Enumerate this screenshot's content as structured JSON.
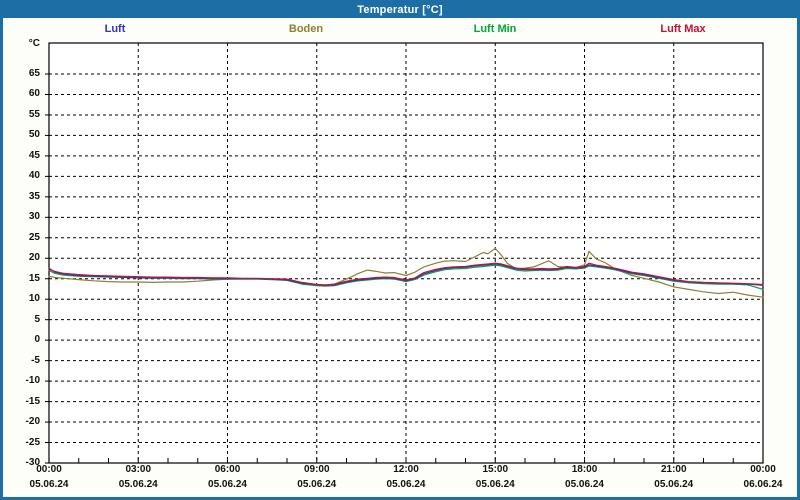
{
  "window": {
    "title": "Temperatur [°C]",
    "title_bg": "#1c6ea4",
    "title_color": "#ffffff",
    "border_color": "#1c6ea4"
  },
  "legend": [
    {
      "label": "Luft",
      "color": "#3232c8"
    },
    {
      "label": "Boden",
      "color": "#917e35"
    },
    {
      "label": "Luft Min",
      "color": "#00a834"
    },
    {
      "label": "Luft Max",
      "color": "#c81032"
    }
  ],
  "chart_data": {
    "type": "line",
    "title": "Temperatur [°C]",
    "xlabel": "",
    "ylabel": "°C",
    "ylim": [
      -30,
      72
    ],
    "grid": "dashed",
    "legend_position": "top",
    "y_ticks": [
      65,
      60,
      55,
      50,
      45,
      40,
      35,
      30,
      25,
      20,
      15,
      10,
      5,
      0,
      -5,
      -10,
      -15,
      -20,
      -25,
      -30
    ],
    "x_ticks": [
      {
        "time": "00:00",
        "date": "05.06.24"
      },
      {
        "time": "03:00",
        "date": "05.06.24"
      },
      {
        "time": "06:00",
        "date": "05.06.24"
      },
      {
        "time": "09:00",
        "date": "05.06.24"
      },
      {
        "time": "12:00",
        "date": "05.06.24"
      },
      {
        "time": "15:00",
        "date": "05.06.24"
      },
      {
        "time": "18:00",
        "date": "05.06.24"
      },
      {
        "time": "21:00",
        "date": "05.06.24"
      },
      {
        "time": "00:00",
        "date": "06.06.24"
      }
    ],
    "x_hours": [
      0,
      0.2,
      0.5,
      1,
      1.5,
      2,
      2.5,
      3,
      3.5,
      4,
      4.5,
      5,
      5.5,
      6,
      6.5,
      7,
      7.5,
      8,
      8.5,
      9,
      9.3,
      9.6,
      10,
      10.4,
      10.7,
      11,
      11.3,
      11.6,
      12,
      12.3,
      12.6,
      13,
      13.3,
      13.6,
      14,
      14.3,
      14.6,
      14.75,
      15,
      15.2,
      15.4,
      15.7,
      16,
      16.3,
      16.6,
      16.8,
      17.1,
      17.4,
      17.7,
      18,
      18.15,
      18.4,
      18.7,
      19,
      19.3,
      19.6,
      20,
      20.5,
      21,
      21.5,
      22,
      22.5,
      23,
      23.5,
      24
    ],
    "series": [
      {
        "name": "Boden",
        "color": "#917e35",
        "values": [
          15.6,
          15.3,
          15.1,
          14.8,
          14.5,
          14.3,
          14.2,
          14.2,
          14.1,
          14.2,
          14.2,
          14.4,
          14.7,
          14.9,
          15.0,
          15.0,
          14.9,
          14.7,
          13.9,
          13.5,
          13.4,
          13.7,
          14.9,
          16.3,
          17.1,
          16.8,
          16.4,
          16.5,
          15.8,
          16.6,
          17.9,
          18.8,
          19.3,
          19.4,
          19.2,
          20.3,
          21.4,
          21.1,
          22.4,
          20.8,
          18.8,
          17.4,
          17.6,
          17.9,
          18.8,
          19.4,
          18.0,
          17.8,
          17.7,
          18.4,
          21.7,
          19.8,
          18.9,
          17.5,
          16.6,
          15.8,
          15.1,
          14.2,
          13.0,
          12.4,
          11.8,
          11.4,
          11.7,
          11.0,
          10.5
        ]
      },
      {
        "name": "Luft Min",
        "color": "#00a834",
        "values": [
          17.0,
          16.3,
          15.9,
          15.6,
          15.5,
          15.4,
          15.3,
          15.2,
          15.1,
          15.1,
          15.0,
          15.0,
          14.9,
          14.9,
          14.9,
          14.9,
          14.8,
          14.6,
          13.7,
          13.3,
          13.2,
          13.3,
          14.0,
          14.5,
          14.7,
          14.9,
          15.0,
          14.9,
          14.3,
          14.8,
          15.9,
          16.7,
          17.2,
          17.4,
          17.5,
          17.8,
          18.0,
          18.1,
          18.3,
          18.1,
          17.7,
          17.1,
          16.9,
          17.0,
          17.1,
          17.0,
          17.1,
          17.5,
          17.4,
          17.6,
          18.1,
          17.9,
          17.6,
          17.2,
          16.7,
          16.2,
          15.8,
          15.1,
          14.4,
          14.0,
          13.8,
          13.7,
          13.7,
          13.5,
          12.4
        ]
      },
      {
        "name": "Luft",
        "color": "#3232c8",
        "values": [
          17.6,
          16.6,
          16.1,
          15.8,
          15.6,
          15.5,
          15.4,
          15.3,
          15.2,
          15.2,
          15.1,
          15.1,
          15.0,
          15.0,
          15.0,
          15.0,
          14.9,
          14.7,
          13.9,
          13.5,
          13.4,
          13.5,
          14.2,
          14.7,
          14.9,
          15.1,
          15.2,
          15.1,
          14.5,
          15.0,
          16.2,
          17.0,
          17.5,
          17.7,
          17.8,
          18.1,
          18.3,
          18.4,
          18.6,
          18.4,
          18.0,
          17.4,
          17.2,
          17.2,
          17.3,
          17.2,
          17.3,
          17.8,
          17.6,
          17.8,
          18.4,
          18.1,
          17.8,
          17.4,
          16.9,
          16.4,
          16.0,
          15.3,
          14.6,
          14.2,
          14.0,
          13.9,
          13.8,
          13.7,
          13.4
        ]
      },
      {
        "name": "Luft Max",
        "color": "#c81032",
        "values": [
          17.3,
          16.8,
          16.3,
          16.0,
          15.8,
          15.7,
          15.6,
          15.5,
          15.4,
          15.4,
          15.3,
          15.3,
          15.2,
          15.2,
          15.1,
          15.1,
          15.0,
          14.9,
          14.1,
          13.6,
          13.5,
          13.7,
          14.4,
          14.9,
          15.1,
          15.3,
          15.4,
          15.3,
          14.7,
          15.2,
          16.5,
          17.3,
          17.7,
          17.9,
          18.0,
          18.3,
          18.5,
          18.6,
          18.8,
          18.6,
          18.2,
          17.6,
          17.4,
          17.4,
          17.5,
          17.4,
          17.5,
          18.0,
          17.8,
          18.0,
          18.8,
          18.3,
          18.0,
          17.6,
          17.1,
          16.6,
          16.2,
          15.5,
          14.8,
          14.3,
          14.1,
          14.0,
          13.9,
          13.8,
          13.6
        ]
      }
    ]
  }
}
